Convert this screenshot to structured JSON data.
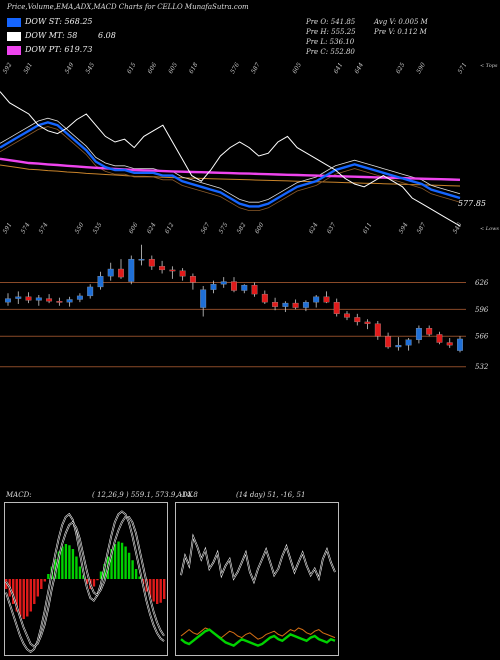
{
  "header": {
    "title": "Price,Volume,EMA,ADX,MACD Charts for CELLO MunafaSutra.com"
  },
  "legend": [
    {
      "label": "DOW ST: 568.25",
      "color": "#1565ff"
    },
    {
      "label": "DOW MT: 58",
      "color": "#ffffff"
    },
    {
      "label": "DOW PT: 619.73",
      "color": "#ee44ee"
    }
  ],
  "extra_value": "6.08",
  "ohlc": {
    "o": "Pre  O: 541.85",
    "h": "Pre  H: 555.25",
    "l": "Pre  L: 536.10",
    "c": "Pre  C: 552.80",
    "avg": "Avg V: 0.005 M",
    "pre_v": "Pre  V: 0.112  M"
  },
  "colors": {
    "up": "#1f6fd6",
    "down": "#e01b1b",
    "level_line": "#8a4a28",
    "ema_main": "#1565ff",
    "ema_pt": "#ee44ee",
    "adx_orange": "#d26d14",
    "adx_green": "#00d200"
  },
  "chart_data": [
    {
      "id": "ema_panel",
      "type": "line",
      "corner_top": "< Tops",
      "corner_bottom": "< Lows",
      "price_label": "577.85",
      "top_labels": [
        "592",
        "581",
        "",
        "549",
        "545",
        "",
        "615",
        "606",
        "605",
        "618",
        "",
        "576",
        "587",
        "",
        "605",
        "",
        "641",
        "644",
        "",
        "625",
        "590",
        "",
        "571"
      ],
      "bottom_labels": [
        "591",
        "574",
        "574",
        "",
        "550",
        "535",
        "",
        "606",
        "624",
        "612",
        "",
        "567",
        "575",
        "582",
        "600",
        "",
        "",
        "624",
        "637",
        "",
        "611",
        "",
        "594",
        "587",
        "",
        "546"
      ],
      "series": [
        {
          "name": "price",
          "values": [
            88,
            84,
            82,
            80,
            76,
            74,
            73,
            75,
            78,
            80,
            76,
            72,
            70,
            71,
            68,
            72,
            74,
            76,
            70,
            64,
            58,
            56,
            60,
            65,
            68,
            70,
            68,
            65,
            66,
            70,
            72,
            68,
            66,
            64,
            62,
            60,
            57,
            55,
            54,
            56,
            58,
            56,
            54,
            50,
            48,
            46,
            44,
            42,
            40
          ]
        },
        {
          "name": "DOW ST",
          "values": [
            68,
            70,
            72,
            74,
            76,
            77,
            76,
            73,
            70,
            67,
            63,
            61,
            60,
            60,
            59,
            59,
            59,
            58,
            58,
            56,
            55,
            54,
            53,
            52,
            50,
            48,
            47,
            47,
            48,
            50,
            52,
            54,
            55,
            56,
            58,
            60,
            61,
            62,
            61,
            60,
            59,
            58,
            57,
            56,
            55,
            53,
            52,
            51,
            50
          ]
        },
        {
          "name": "DOW PT",
          "values": [
            64,
            63.5,
            63,
            62.5,
            62.3,
            62,
            61.8,
            61.5,
            61.3,
            61,
            60.8,
            60.6,
            60.4,
            60.2,
            60,
            59.9,
            59.8,
            59.6,
            59.5,
            59.4,
            59.3,
            59.2,
            59.1,
            59,
            58.9,
            58.8,
            58.7,
            58.6,
            58.5,
            58.4,
            58.3,
            58.2,
            58.1,
            58,
            57.9,
            57.8,
            57.7,
            57.6,
            57.5,
            57.4,
            57.3,
            57.2,
            57.1,
            57,
            56.9,
            56.8,
            56.7,
            56.6,
            56.5
          ]
        }
      ]
    },
    {
      "id": "candles",
      "type": "candlestick",
      "levels": [
        {
          "value": 626,
          "label": "626"
        },
        {
          "value": 596,
          "label": "596"
        },
        {
          "value": 566,
          "label": "566"
        },
        {
          "value": 532,
          "label": "532"
        }
      ],
      "ylim": [
        525,
        670
      ],
      "ohlc": [
        [
          604,
          614,
          600,
          608
        ],
        [
          608,
          616,
          602,
          610
        ],
        [
          610,
          615,
          603,
          606
        ],
        [
          606,
          612,
          600,
          609
        ],
        [
          608,
          613,
          603,
          605
        ],
        [
          605,
          609,
          600,
          604
        ],
        [
          604,
          610,
          599,
          607
        ],
        [
          607,
          614,
          604,
          611
        ],
        [
          611,
          624,
          608,
          621
        ],
        [
          621,
          638,
          618,
          633
        ],
        [
          633,
          648,
          628,
          641
        ],
        [
          641,
          652,
          630,
          632
        ],
        [
          627,
          656,
          624,
          652
        ],
        [
          652,
          668,
          645,
          652
        ],
        [
          652,
          656,
          640,
          644
        ],
        [
          644,
          650,
          636,
          640
        ],
        [
          640,
          644,
          630,
          639
        ],
        [
          639,
          642,
          628,
          633
        ],
        [
          633,
          636,
          618,
          626
        ],
        [
          598,
          622,
          588,
          618
        ],
        [
          618,
          628,
          614,
          624
        ],
        [
          624,
          632,
          620,
          627
        ],
        [
          627,
          632,
          615,
          617
        ],
        [
          617,
          624,
          614,
          623
        ],
        [
          623,
          626,
          610,
          613
        ],
        [
          613,
          617,
          602,
          604
        ],
        [
          604,
          609,
          595,
          599
        ],
        [
          599,
          605,
          593,
          603
        ],
        [
          603,
          607,
          596,
          598
        ],
        [
          598,
          606,
          594,
          604
        ],
        [
          604,
          612,
          598,
          610
        ],
        [
          610,
          616,
          603,
          604
        ],
        [
          604,
          608,
          588,
          591
        ],
        [
          591,
          594,
          584,
          587
        ],
        [
          587,
          591,
          578,
          582
        ],
        [
          582,
          585,
          574,
          580
        ],
        [
          580,
          583,
          562,
          566
        ],
        [
          566,
          570,
          552,
          554
        ],
        [
          554,
          565,
          550,
          556
        ],
        [
          556,
          564,
          550,
          562
        ],
        [
          562,
          578,
          558,
          575
        ],
        [
          575,
          578,
          566,
          568
        ],
        [
          568,
          571,
          557,
          559
        ],
        [
          559,
          564,
          553,
          556
        ],
        [
          550,
          566,
          548,
          563
        ]
      ]
    },
    {
      "id": "macd",
      "type": "histogram-line",
      "title": "MACD:",
      "params": "( 12,26,9 ) 559.1,  573.9,  -14.8",
      "histogram": [
        -8,
        -14,
        -20,
        -26,
        -30,
        -32,
        -30,
        -26,
        -20,
        -14,
        -8,
        -2,
        4,
        10,
        16,
        22,
        26,
        28,
        27,
        24,
        18,
        10,
        3,
        -4,
        -8,
        -6,
        -1,
        6,
        12,
        18,
        24,
        28,
        30,
        29,
        26,
        21,
        15,
        8,
        2,
        -4,
        -10,
        -15,
        -18,
        -20,
        -19,
        -16
      ],
      "series": [
        {
          "values": [
            -10,
            -18,
            -26,
            -34,
            -42,
            -48,
            -52,
            -54,
            -52,
            -46,
            -36,
            -24,
            -10,
            4,
            18,
            30,
            40,
            46,
            48,
            44,
            34,
            20,
            6,
            -6,
            -14,
            -16,
            -12,
            -4,
            8,
            20,
            32,
            42,
            48,
            50,
            48,
            42,
            32,
            20,
            8,
            -4,
            -16,
            -26,
            -34,
            -40,
            -44,
            -46
          ]
        },
        {
          "values": [
            -2,
            -6,
            -12,
            -20,
            -28,
            -36,
            -42,
            -48,
            -50,
            -48,
            -42,
            -34,
            -22,
            -8,
            4,
            16,
            26,
            34,
            40,
            42,
            38,
            30,
            18,
            6,
            -4,
            -10,
            -12,
            -8,
            -2,
            8,
            18,
            28,
            36,
            42,
            46,
            46,
            42,
            34,
            22,
            10,
            -2,
            -14,
            -24,
            -32,
            -38,
            -42
          ]
        }
      ]
    },
    {
      "id": "adx",
      "type": "line",
      "title": "ADX",
      "params": "(14  day) 51,  -16,  51",
      "series": [
        {
          "values": [
            48,
            60,
            54,
            72,
            66,
            58,
            64,
            52,
            56,
            62,
            48,
            54,
            58,
            46,
            50,
            56,
            62,
            50,
            44,
            52,
            58,
            64,
            56,
            48,
            52,
            60,
            66,
            58,
            50,
            56,
            62,
            54,
            48,
            52,
            46,
            58,
            64,
            56,
            50
          ]
        },
        {
          "values": [
            10,
            12,
            14,
            12,
            11,
            13,
            15,
            14,
            12,
            10,
            9,
            11,
            13,
            12,
            10,
            9,
            11,
            12,
            10,
            8,
            9,
            11,
            12,
            13,
            11,
            10,
            12,
            14,
            13,
            15,
            14,
            12,
            11,
            13,
            14,
            12,
            11,
            10,
            9
          ]
        },
        {
          "values": [
            8,
            6,
            5,
            7,
            9,
            11,
            13,
            14,
            12,
            10,
            8,
            6,
            5,
            4,
            6,
            8,
            7,
            6,
            5,
            4,
            5,
            7,
            9,
            10,
            8,
            7,
            9,
            11,
            10,
            9,
            8,
            7,
            9,
            10,
            8,
            7,
            6,
            8,
            7
          ]
        }
      ]
    }
  ]
}
